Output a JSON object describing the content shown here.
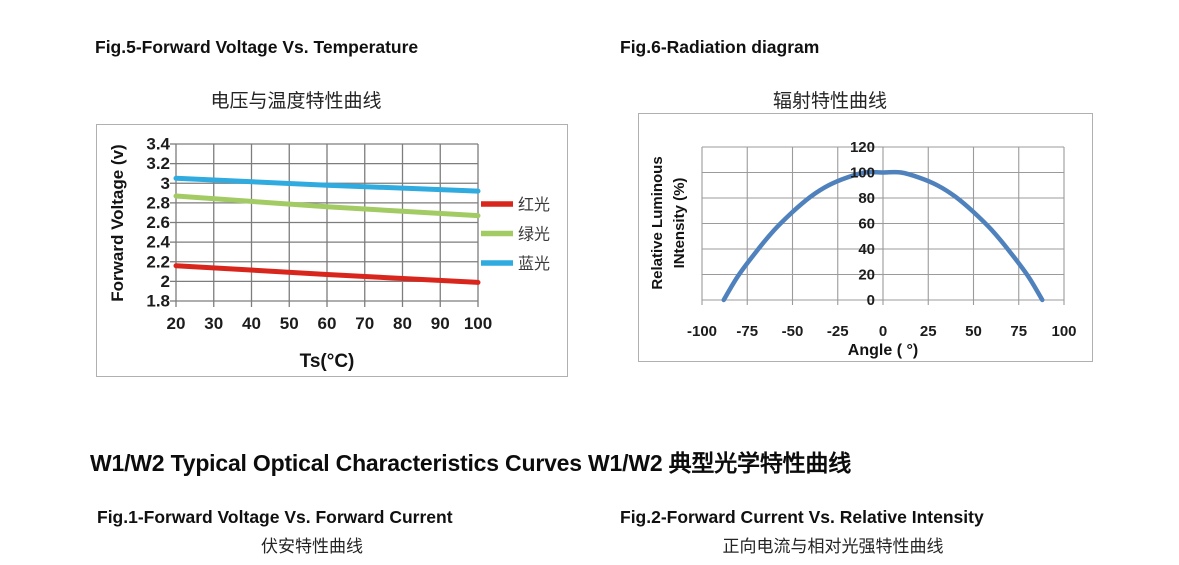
{
  "figures": {
    "fig5": {
      "caption": "Fig.5-Forward Voltage Vs. Temperature",
      "subtitle_cn": "电压与温度特性曲线"
    },
    "fig6": {
      "caption": "Fig.6-Radiation diagram",
      "subtitle_cn": "辐射特性曲线"
    }
  },
  "section": {
    "heading": "W1/W2 Typical Optical Characteristics Curves W1/W2 典型光学特性曲线"
  },
  "bottom_figures": {
    "fig1": {
      "caption": "Fig.1-Forward Voltage Vs. Forward Current",
      "subtitle_cn": "伏安特性曲线"
    },
    "fig2": {
      "caption": "Fig.2-Forward Current Vs. Relative Intensity",
      "subtitle_cn": "正向电流与相对光强特性曲线"
    }
  },
  "colors": {
    "red_series": "#d9261c",
    "green_series": "#a3cb64",
    "blue_series": "#2fabdf",
    "radiation_curve": "#4f81bd",
    "grid_dark": "#7d7d7d",
    "grid_light": "#9b9b9b",
    "box_border": "#b0b0b0"
  },
  "chart_data": [
    {
      "id": "fig5",
      "type": "line",
      "title": "电压与温度特性曲线",
      "xlabel": "Ts(°C)",
      "ylabel": "Forward Voltage (v)",
      "xlim": [
        20,
        100
      ],
      "ylim": [
        1.8,
        3.4
      ],
      "xticks": [
        20,
        30,
        40,
        50,
        60,
        70,
        80,
        90,
        100
      ],
      "yticks": [
        1.8,
        2,
        2.2,
        2.4,
        2.6,
        2.8,
        3,
        3.2,
        3.4
      ],
      "grid": true,
      "legend_position": "right-outside",
      "series": [
        {
          "name": "红光",
          "color": "#d9261c",
          "x": [
            20,
            60,
            100
          ],
          "y": [
            2.16,
            2.07,
            1.99
          ]
        },
        {
          "name": "绿光",
          "color": "#a3cb64",
          "x": [
            20,
            60,
            100
          ],
          "y": [
            2.87,
            2.76,
            2.67
          ]
        },
        {
          "name": "蓝光",
          "color": "#2fabdf",
          "x": [
            20,
            60,
            100
          ],
          "y": [
            3.05,
            2.98,
            2.92
          ]
        }
      ]
    },
    {
      "id": "fig6",
      "type": "line",
      "title": "辐射特性曲线",
      "xlabel": "Angle ( °)",
      "ylabel": "Relative Luminous INtensity (%)",
      "ylabel_lines": [
        "Relative Luminous",
        "INtensity (%)"
      ],
      "xlim": [
        -100,
        100
      ],
      "ylim": [
        0,
        120
      ],
      "xticks": [
        -100,
        -75,
        -50,
        -25,
        0,
        25,
        50,
        75,
        100
      ],
      "yticks": [
        0,
        20,
        40,
        60,
        80,
        100,
        120
      ],
      "grid": true,
      "legend_position": "none",
      "series": [
        {
          "name": "relative luminous intensity",
          "color": "#4f81bd",
          "smooth": true,
          "x": [
            -88,
            -80,
            -70,
            -60,
            -50,
            -40,
            -30,
            -20,
            -10,
            0,
            10,
            20,
            30,
            40,
            50,
            60,
            70,
            80,
            88
          ],
          "y": [
            0,
            19,
            38,
            55,
            69,
            81,
            90,
            96,
            100,
            100,
            100,
            96,
            90,
            81,
            69,
            55,
            38,
            19,
            0
          ]
        }
      ]
    }
  ]
}
